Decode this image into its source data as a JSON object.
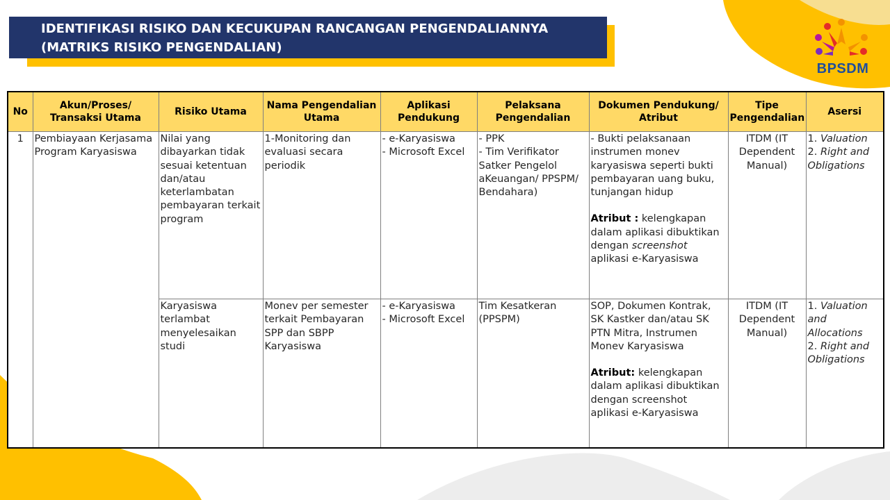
{
  "title": {
    "line1": "IDENTIFIKASI RISIKO DAN KECUKUPAN RANCANGAN PENGENDALIANNYA",
    "line2": "(MATRIKS RISIKO PENGENDALIAN)"
  },
  "logo": {
    "text": "BPSDM"
  },
  "colors": {
    "navy": "#22356B",
    "yellow": "#FFC000",
    "header_fill": "#FFD966",
    "logo_blue": "#1F4E9C"
  },
  "table": {
    "headers": {
      "no": "No",
      "akun": "Akun/Proses/\nTransaksi Utama",
      "risiko": "Risiko Utama",
      "nama": "Nama Pengendalian\nUtama",
      "aplikasi": "Aplikasi\nPendukung",
      "pelaksana": "Pelaksana\nPengendalian",
      "dokumen": "Dokumen Pendukung/\nAtribut",
      "tipe": "Tipe\nPengendalian",
      "asersi": "Asersi"
    },
    "row1": {
      "no": "1",
      "akun": "Pembiayaan Kerjasama Program Karyasiswa",
      "risiko": "Nilai yang dibayarkan tidak sesuai ketentuan dan/atau keterlambatan pembayaran terkait program",
      "nama": "1-Monitoring dan evaluasi secara periodik",
      "aplikasi": "- e-Karyasiswa\n- Microsoft Excel",
      "pelaksana": "- PPK\n- Tim Verifikator Satker Pengelol aKeuangan/ PPSPM/ Bendahara)",
      "dokumen_main": "- Bukti pelaksanaan instrumen monev karyasiswa seperti bukti pembayaran uang buku, tunjangan hidup",
      "atribut_label": "Atribut :",
      "atribut_text": " kelengkapan dalam aplikasi dibuktikan dengan ",
      "atribut_italic": "screenshot",
      "atribut_end": " aplikasi e-Karyasiswa",
      "tipe": "ITDM (IT Dependent Manual)",
      "asersi1_num": "1. ",
      "asersi1": "Valuation",
      "asersi2_num": "2. ",
      "asersi2": "Right and Obligations"
    },
    "row2": {
      "risiko": "Karyasiswa terlambat menyelesaikan studi",
      "nama": "Monev per semester terkait Pembayaran SPP dan SBPP Karyasiswa",
      "aplikasi": "- e-Karyasiswa\n- Microsoft Excel",
      "pelaksana": "Tim Kesatkeran (PPSPM)",
      "dokumen_main": "SOP, Dokumen Kontrak, SK Kastker dan/atau SK PTN Mitra, Instrumen Monev Karyasiswa",
      "atribut_label": "Atribut:",
      "atribut_text": " kelengkapan dalam aplikasi dibuktikan dengan screenshot aplikasi e-Karyasiswa",
      "tipe": "ITDM (IT Dependent Manual)",
      "asersi1_num": "1. ",
      "asersi1": "Valuation and Allocations",
      "asersi2_num": "2. ",
      "asersi2": "Right and Obligations"
    }
  }
}
